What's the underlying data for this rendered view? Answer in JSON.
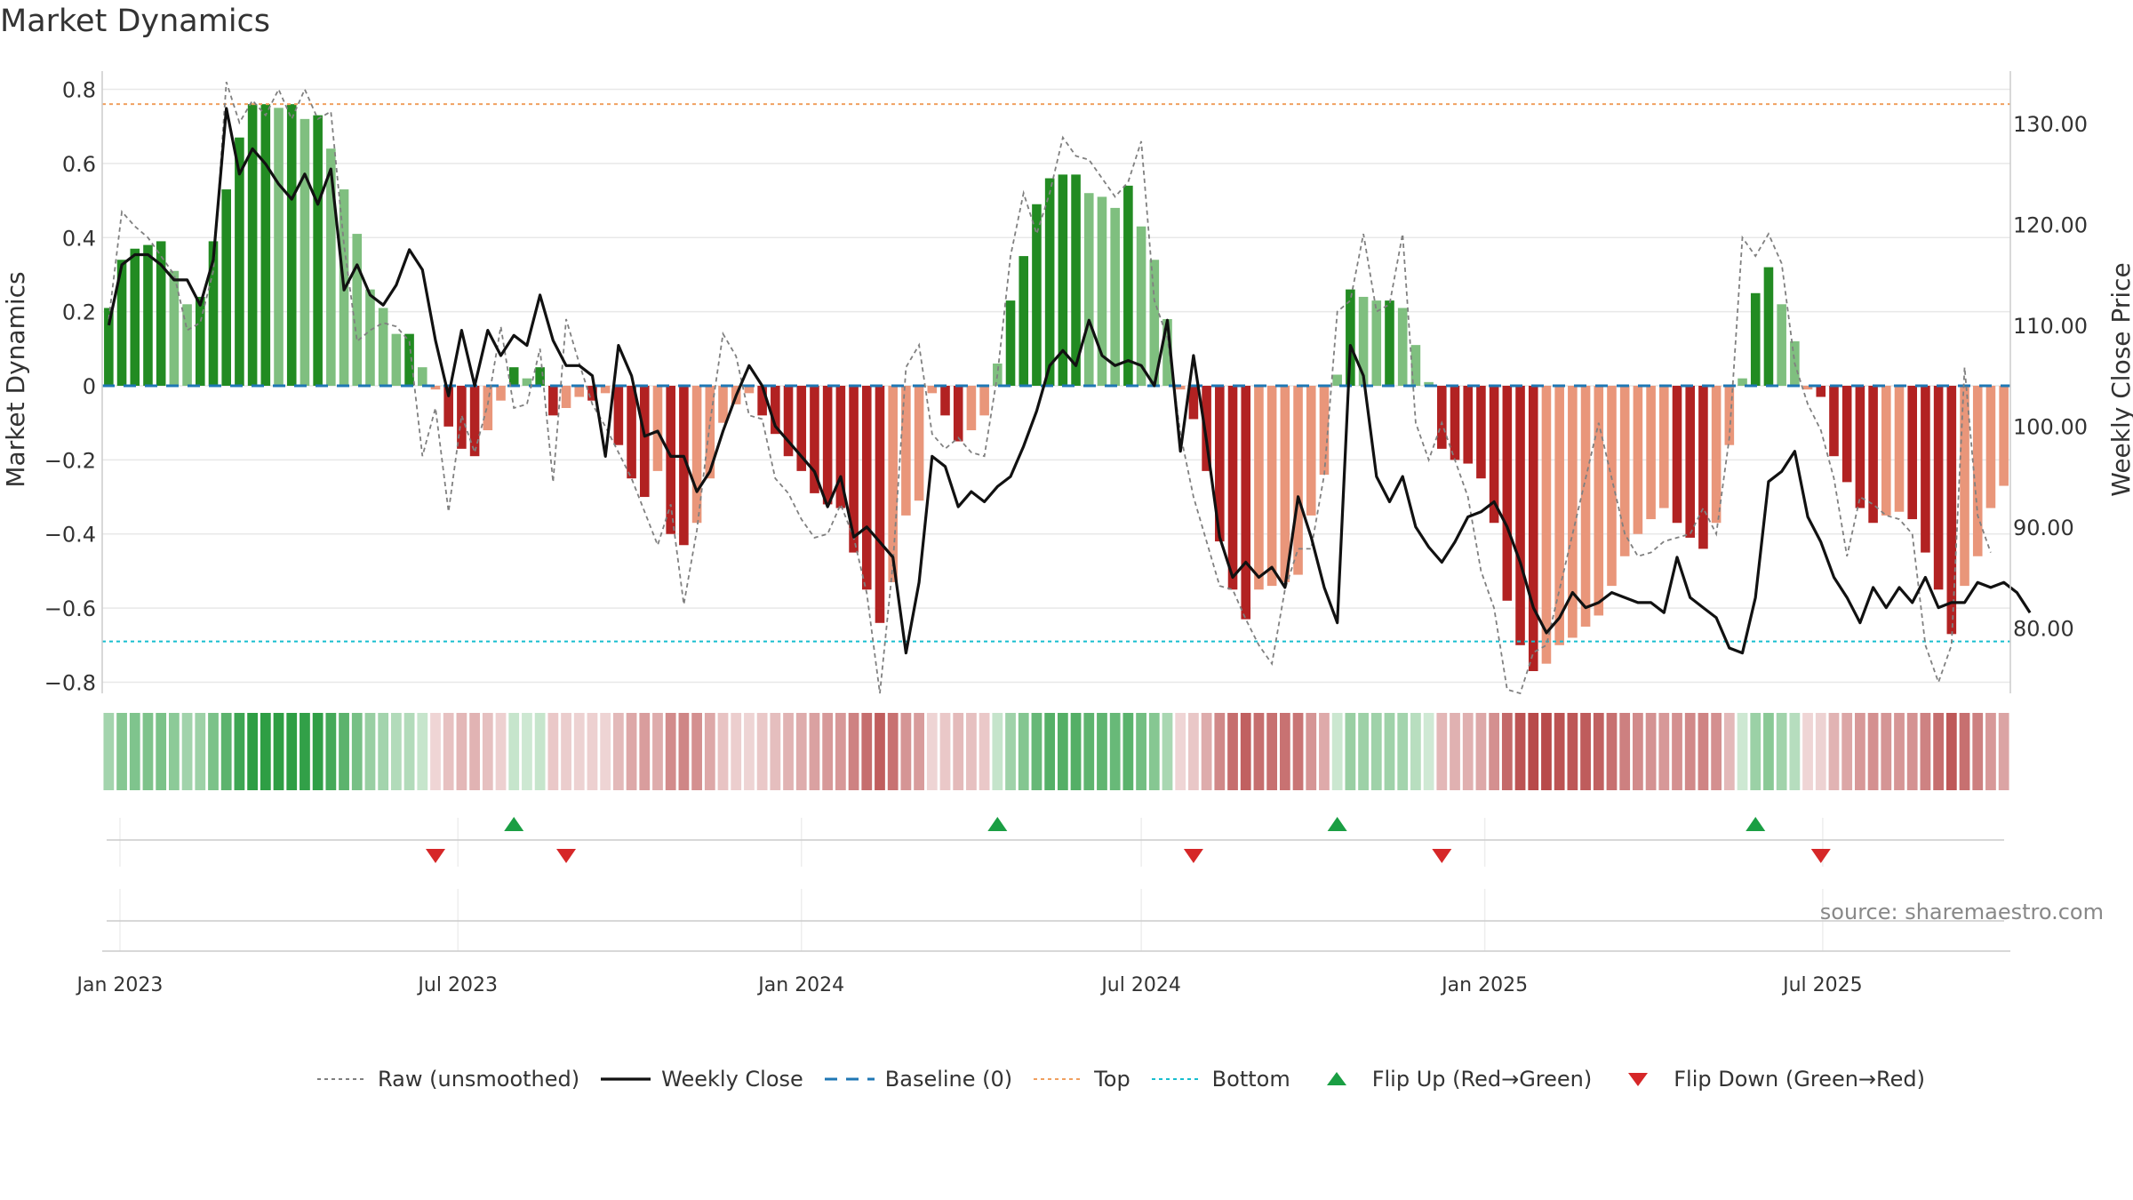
{
  "chart_data": {
    "type": "bar",
    "title": "Market Dynamics",
    "source_text": "source: sharemaestro.com",
    "ylabel_left": "Market Dynamics",
    "ylabel_right": "Weekly Close Price",
    "ylim_left": [
      -0.83,
      0.83
    ],
    "ylim_right": [
      73.5,
      134.5
    ],
    "yticks_left": [
      -0.8,
      -0.6,
      -0.4,
      -0.2,
      0,
      0.2,
      0.4,
      0.6,
      0.8
    ],
    "ytick_labels_left": [
      "−0.8",
      "−0.6",
      "−0.4",
      "−0.2",
      "0",
      "0.2",
      "0.4",
      "0.6",
      "0.8"
    ],
    "yticks_right": [
      80,
      90,
      100,
      110,
      120,
      130
    ],
    "ytick_labels_right": [
      "80.00",
      "90.00",
      "100.00",
      "110.00",
      "120.00",
      "130.00"
    ],
    "x_start": "2022-12-26",
    "x_ticks": [
      {
        "label": "Jan 2023",
        "date": "2023-01-01"
      },
      {
        "label": "Jul 2023",
        "date": "2023-07-01"
      },
      {
        "label": "Jan 2024",
        "date": "2024-01-01"
      },
      {
        "label": "Jul 2024",
        "date": "2024-07-01"
      },
      {
        "label": "Jan 2025",
        "date": "2025-01-01"
      },
      {
        "label": "Jul 2025",
        "date": "2025-07-01"
      }
    ],
    "top_level": 0.76,
    "bottom_level": -0.69,
    "baseline": 0,
    "grid": true,
    "dynamics": [
      0.21,
      0.34,
      0.37,
      0.38,
      0.39,
      0.31,
      0.22,
      0.24,
      0.39,
      0.53,
      0.67,
      0.76,
      0.76,
      0.75,
      0.76,
      0.72,
      0.73,
      0.64,
      0.53,
      0.41,
      0.26,
      0.21,
      0.14,
      0.14,
      0.05,
      -0.01,
      -0.11,
      -0.17,
      -0.19,
      -0.12,
      -0.04,
      0.05,
      0.02,
      0.05,
      -0.08,
      -0.06,
      -0.03,
      -0.04,
      -0.02,
      -0.16,
      -0.25,
      -0.3,
      -0.23,
      -0.4,
      -0.43,
      -0.37,
      -0.25,
      -0.1,
      -0.05,
      -0.02,
      -0.08,
      -0.13,
      -0.19,
      -0.23,
      -0.29,
      -0.32,
      -0.33,
      -0.45,
      -0.55,
      -0.64,
      -0.53,
      -0.35,
      -0.31,
      -0.02,
      -0.08,
      -0.15,
      -0.12,
      -0.08,
      0.06,
      0.23,
      0.35,
      0.49,
      0.56,
      0.57,
      0.57,
      0.52,
      0.51,
      0.48,
      0.54,
      0.43,
      0.34,
      0.18,
      -0.01,
      -0.09,
      -0.23,
      -0.42,
      -0.55,
      -0.63,
      -0.55,
      -0.54,
      -0.53,
      -0.51,
      -0.35,
      -0.24,
      0.03,
      0.26,
      0.24,
      0.23,
      0.23,
      0.21,
      0.11,
      0.01,
      -0.17,
      -0.2,
      -0.21,
      -0.25,
      -0.37,
      -0.58,
      -0.7,
      -0.77,
      -0.75,
      -0.7,
      -0.68,
      -0.65,
      -0.62,
      -0.54,
      -0.46,
      -0.4,
      -0.36,
      -0.33,
      -0.37,
      -0.41,
      -0.44,
      -0.37,
      -0.16,
      0.02,
      0.25,
      0.32,
      0.22,
      0.12,
      -0.01,
      -0.03,
      -0.19,
      -0.26,
      -0.33,
      -0.37,
      -0.35,
      -0.34,
      -0.36,
      -0.45,
      -0.55,
      -0.67,
      -0.54,
      -0.46,
      -0.33,
      -0.27
    ],
    "raw": [
      0.18,
      0.47,
      0.43,
      0.4,
      0.35,
      0.3,
      0.15,
      0.17,
      0.31,
      0.82,
      0.71,
      0.77,
      0.73,
      0.8,
      0.72,
      0.8,
      0.72,
      0.74,
      0.38,
      0.12,
      0.15,
      0.17,
      0.16,
      0.12,
      -0.19,
      -0.06,
      -0.34,
      -0.08,
      -0.18,
      -0.05,
      0.16,
      -0.06,
      -0.05,
      0.1,
      -0.26,
      0.18,
      0.06,
      -0.05,
      -0.11,
      -0.18,
      -0.25,
      -0.34,
      -0.43,
      -0.32,
      -0.59,
      -0.39,
      -0.1,
      0.14,
      0.08,
      -0.08,
      -0.09,
      -0.25,
      -0.29,
      -0.36,
      -0.41,
      -0.4,
      -0.32,
      -0.41,
      -0.56,
      -0.83,
      -0.48,
      0.05,
      0.11,
      -0.13,
      -0.17,
      -0.14,
      -0.18,
      -0.19,
      0.03,
      0.35,
      0.52,
      0.41,
      0.52,
      0.67,
      0.62,
      0.61,
      0.56,
      0.51,
      0.55,
      0.66,
      0.23,
      0.13,
      -0.13,
      -0.3,
      -0.42,
      -0.54,
      -0.55,
      -0.63,
      -0.7,
      -0.75,
      -0.55,
      -0.44,
      -0.44,
      -0.24,
      0.2,
      0.23,
      0.41,
      0.2,
      0.22,
      0.41,
      -0.1,
      -0.2,
      -0.1,
      -0.2,
      -0.3,
      -0.5,
      -0.6,
      -0.82,
      -0.83,
      -0.72,
      -0.7,
      -0.55,
      -0.4,
      -0.25,
      -0.1,
      -0.25,
      -0.4,
      -0.46,
      -0.45,
      -0.42,
      -0.41,
      -0.4,
      -0.33,
      -0.4,
      -0.14,
      0.4,
      0.35,
      0.41,
      0.33,
      0.06,
      -0.05,
      -0.12,
      -0.25,
      -0.46,
      -0.3,
      -0.32,
      -0.35,
      -0.36,
      -0.4,
      -0.7,
      -0.8,
      -0.7,
      0.05,
      -0.35,
      -0.45
    ],
    "weekly_close": [
      110.0,
      116.0,
      117.0,
      117.0,
      116.0,
      114.5,
      114.5,
      112.0,
      116.5,
      131.5,
      125.0,
      127.5,
      126.0,
      124.0,
      122.5,
      125.0,
      122.0,
      125.5,
      113.5,
      116.0,
      113.0,
      112.0,
      114.0,
      117.5,
      115.5,
      108.5,
      103.0,
      109.5,
      104.0,
      109.5,
      107.0,
      109.0,
      108.0,
      113.0,
      108.5,
      106.0,
      106.0,
      105.0,
      97.0,
      108.0,
      105.0,
      99.0,
      99.5,
      97.0,
      97.0,
      93.5,
      95.5,
      99.5,
      103.0,
      106.0,
      104.0,
      100.0,
      98.5,
      97.0,
      95.5,
      92.0,
      95.0,
      89.0,
      90.0,
      88.5,
      87.0,
      77.5,
      84.5,
      97.0,
      96.0,
      92.0,
      93.5,
      92.5,
      94.0,
      95.0,
      98.0,
      101.5,
      106.0,
      107.5,
      106.0,
      110.5,
      107.0,
      106.0,
      106.5,
      106.0,
      104.0,
      110.5,
      97.5,
      107.0,
      98.5,
      89.0,
      85.0,
      86.5,
      85.0,
      86.0,
      84.0,
      93.0,
      89.0,
      84.0,
      80.5,
      108.0,
      105.0,
      95.0,
      92.5,
      95.0,
      90.0,
      88.0,
      86.5,
      88.5,
      91.0,
      91.5,
      92.5,
      90.0,
      86.5,
      82.0,
      79.5,
      81.0,
      83.5,
      82.0,
      82.5,
      83.5,
      83.0,
      82.5,
      82.5,
      81.5,
      87.0,
      83.0,
      82.0,
      81.0,
      78.0,
      77.5,
      83.0,
      94.5,
      95.5,
      97.5,
      91.0,
      88.5,
      85.0,
      83.0,
      80.5,
      84.0,
      82.0,
      84.0,
      82.5,
      85.0,
      82.0,
      82.5,
      82.5,
      84.5,
      84.0,
      84.5,
      83.5,
      81.5
    ],
    "flips": [
      {
        "type": "down",
        "index": 25
      },
      {
        "type": "up",
        "index": 31
      },
      {
        "type": "down",
        "index": 35
      },
      {
        "type": "up",
        "index": 68
      },
      {
        "type": "down",
        "index": 83
      },
      {
        "type": "up",
        "index": 94
      },
      {
        "type": "down",
        "index": 102
      },
      {
        "type": "up",
        "index": 126
      },
      {
        "type": "down",
        "index": 131
      }
    ],
    "colors": {
      "bar_green_strong": "#228b22",
      "bar_green_weak": "#7fbf7f",
      "bar_red_strong": "#b22222",
      "bar_red_weak": "#e9967a",
      "heat_green": "#2e9e44",
      "heat_red": "#b84a4a",
      "weekly_close": "#111111",
      "raw": "#808080",
      "baseline": "#1f77b4",
      "top": "#f0a060",
      "bottom": "#17becf",
      "flip_up": "#1a9e43",
      "flip_down": "#d62728"
    },
    "legend": [
      {
        "key": "raw",
        "label": "Raw (unsmoothed)",
        "style": "dotted-line"
      },
      {
        "key": "weekly_close",
        "label": "Weekly Close",
        "style": "solid-line"
      },
      {
        "key": "baseline",
        "label": "Baseline (0)",
        "style": "dashed-line"
      },
      {
        "key": "top",
        "label": "Top",
        "style": "dotted-line"
      },
      {
        "key": "bottom",
        "label": "Bottom",
        "style": "dotted-line"
      },
      {
        "key": "flip_up",
        "label": "Flip Up (Red→Green)",
        "style": "triangle-up"
      },
      {
        "key": "flip_down",
        "label": "Flip Down (Green→Red)",
        "style": "triangle-down"
      }
    ]
  }
}
